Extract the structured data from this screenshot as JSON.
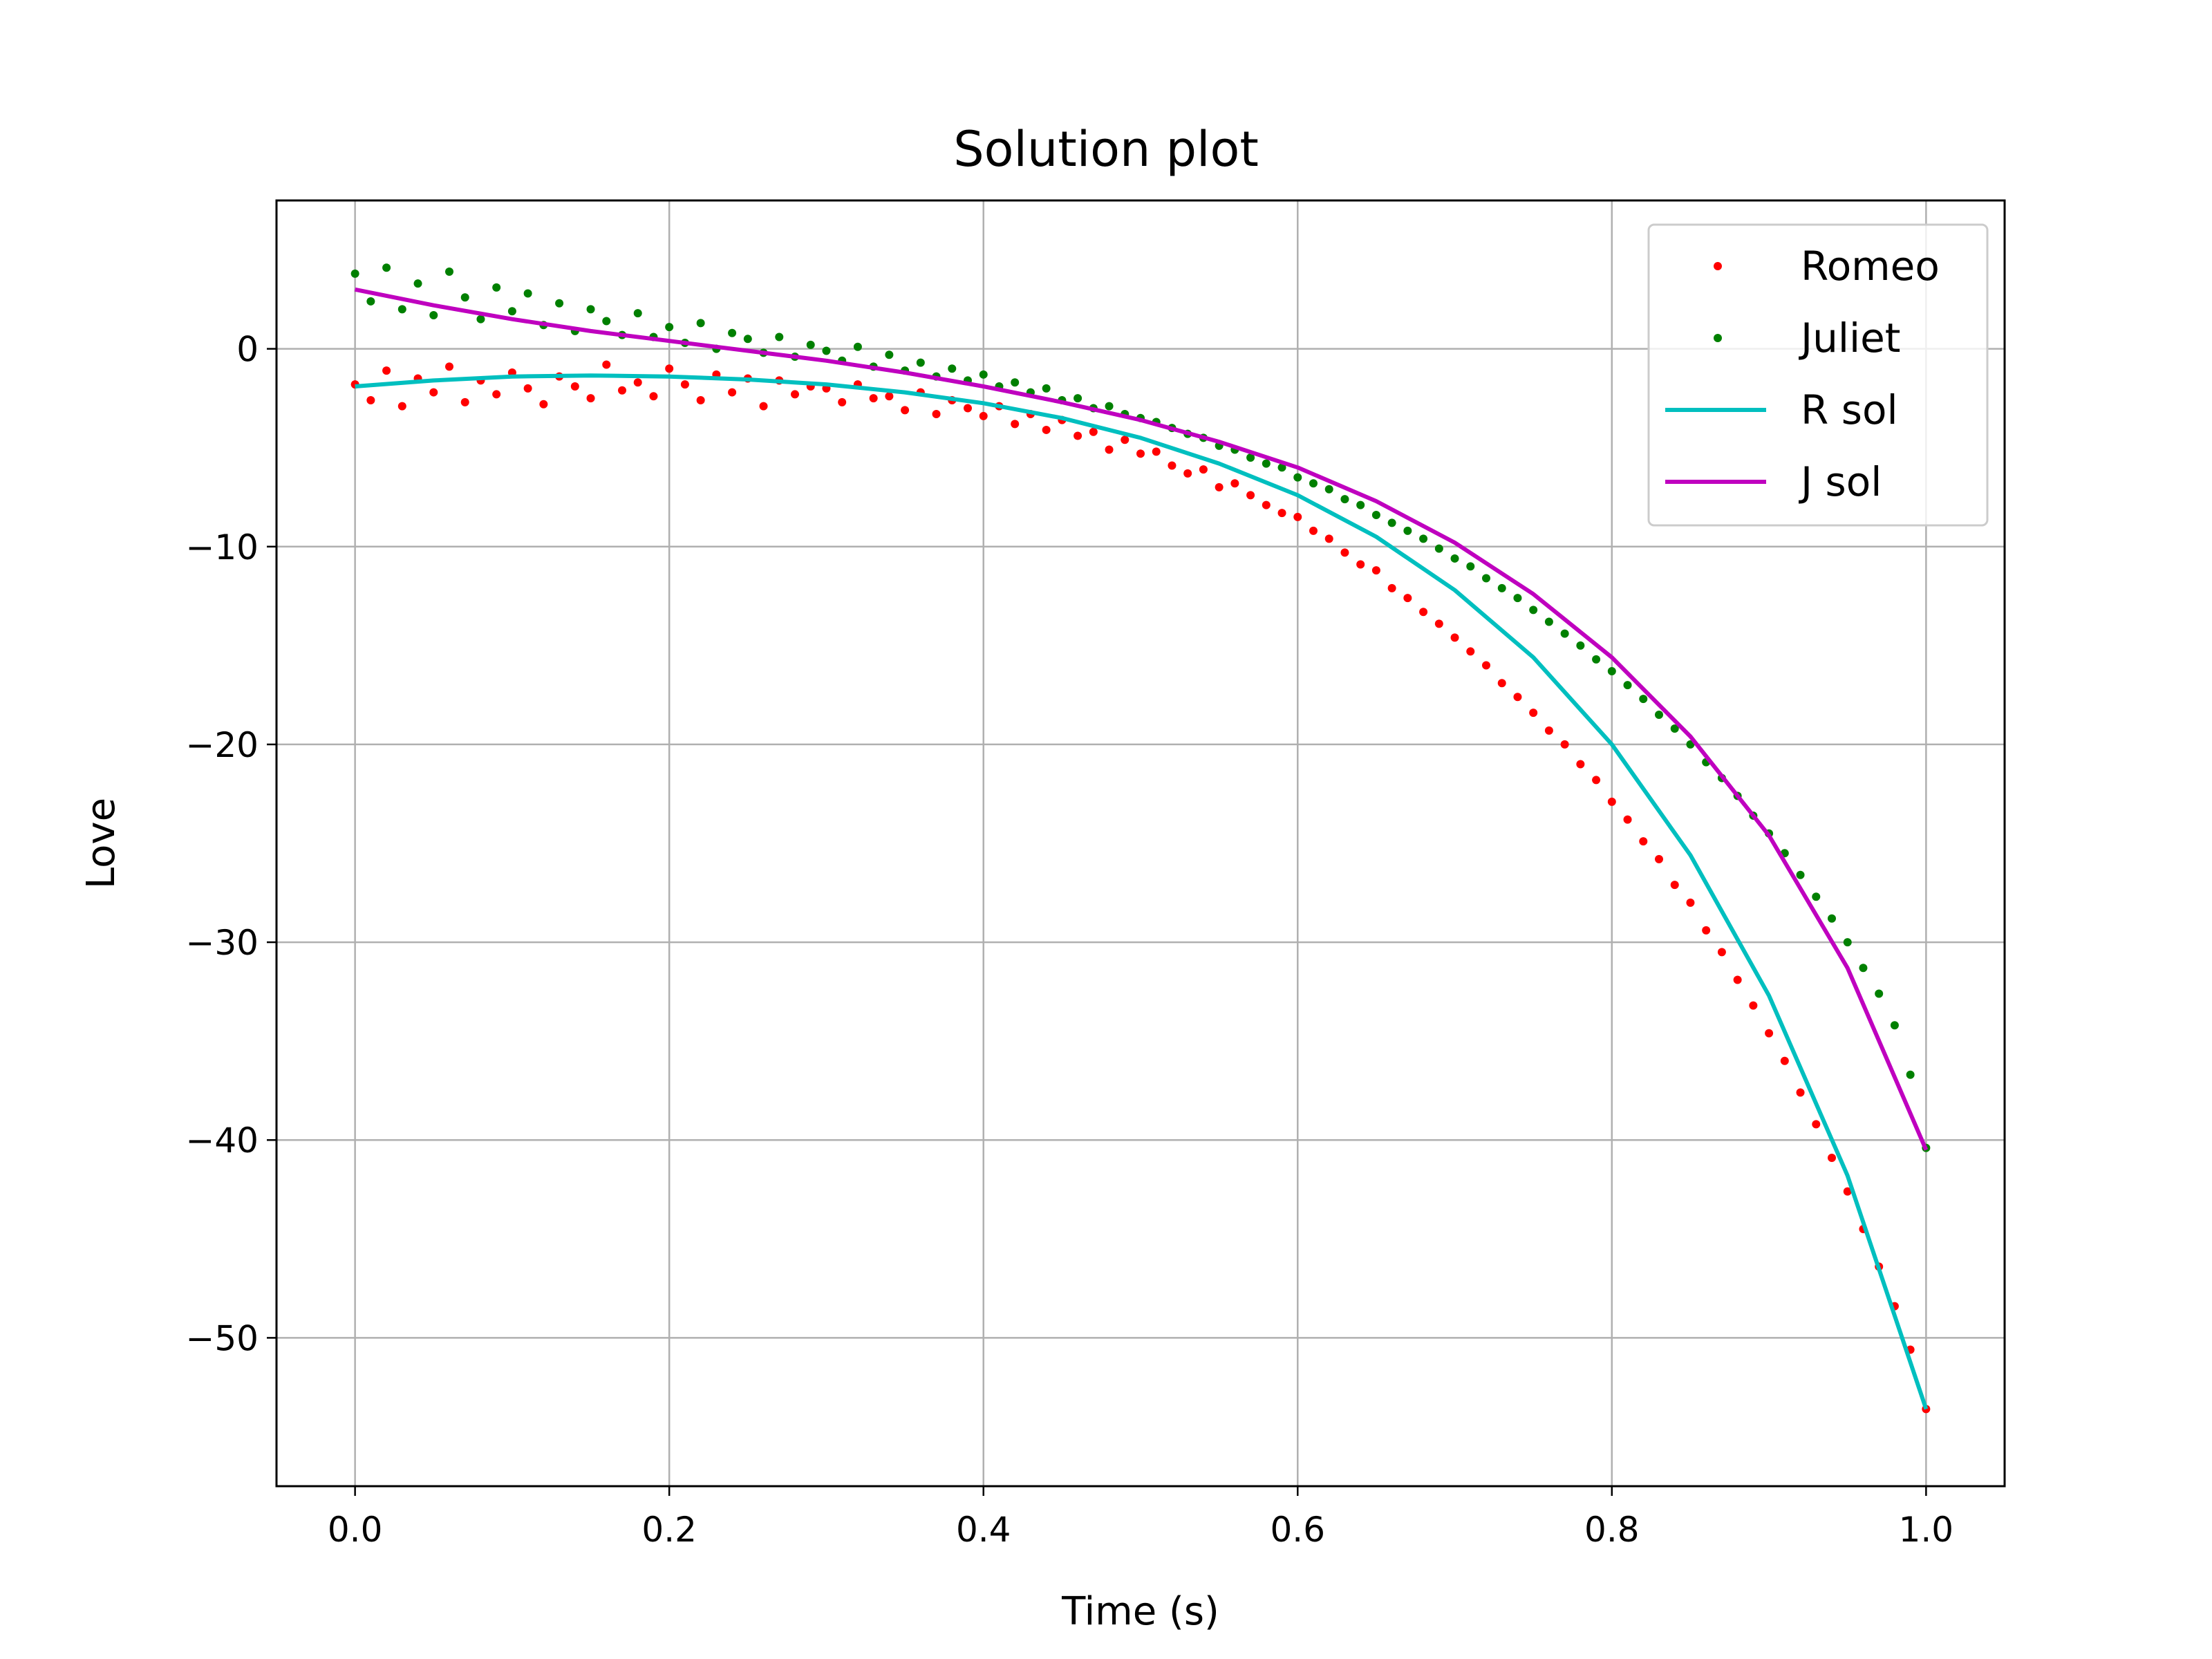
{
  "chart_data": {
    "type": "scatter",
    "title": "Solution plot",
    "xlabel": "Time (s)",
    "ylabel": "Love",
    "xlim": [
      -0.05,
      1.05
    ],
    "ylim": [
      -57.5,
      7.5
    ],
    "xticks": [
      0.0,
      0.2,
      0.4,
      0.6,
      0.8,
      1.0
    ],
    "xtick_labels": [
      "0.0",
      "0.2",
      "0.4",
      "0.6",
      "0.8",
      "1.0"
    ],
    "yticks": [
      0,
      -10,
      -20,
      -30,
      -40,
      -50
    ],
    "ytick_labels": [
      "0",
      "−10",
      "−20",
      "−30",
      "−40",
      "−50"
    ],
    "grid": true,
    "legend_position": "top-right",
    "colors": {
      "Romeo": "#ff0000",
      "Juliet": "#008000",
      "R sol": "#00bfbf",
      "J sol": "#bf00bf"
    },
    "series": [
      {
        "name": "Romeo",
        "kind": "points",
        "x": [
          0.0,
          0.01,
          0.02,
          0.03,
          0.04,
          0.05,
          0.06,
          0.07,
          0.08,
          0.09,
          0.1,
          0.11,
          0.12,
          0.13,
          0.14,
          0.15,
          0.16,
          0.17,
          0.18,
          0.19,
          0.2,
          0.21,
          0.22,
          0.23,
          0.24,
          0.25,
          0.26,
          0.27,
          0.28,
          0.29,
          0.3,
          0.31,
          0.32,
          0.33,
          0.34,
          0.35,
          0.36,
          0.37,
          0.38,
          0.39,
          0.4,
          0.41,
          0.42,
          0.43,
          0.44,
          0.45,
          0.46,
          0.47,
          0.48,
          0.49,
          0.5,
          0.51,
          0.52,
          0.53,
          0.54,
          0.55,
          0.56,
          0.57,
          0.58,
          0.59,
          0.6,
          0.61,
          0.62,
          0.63,
          0.64,
          0.65,
          0.66,
          0.67,
          0.68,
          0.69,
          0.7,
          0.71,
          0.72,
          0.73,
          0.74,
          0.75,
          0.76,
          0.77,
          0.78,
          0.79,
          0.8,
          0.81,
          0.82,
          0.83,
          0.84,
          0.85,
          0.86,
          0.87,
          0.88,
          0.89,
          0.9,
          0.91,
          0.92,
          0.93,
          0.94,
          0.95,
          0.96,
          0.97,
          0.98,
          0.99,
          1.0
        ],
        "y": [
          -1.8,
          -2.6,
          -1.1,
          -2.9,
          -1.5,
          -2.2,
          -0.9,
          -2.7,
          -1.6,
          -2.3,
          -1.2,
          -2.0,
          -2.8,
          -1.4,
          -1.9,
          -2.5,
          -0.8,
          -2.1,
          -1.7,
          -2.4,
          -1.0,
          -1.8,
          -2.6,
          -1.3,
          -2.2,
          -1.5,
          -2.9,
          -1.6,
          -2.3,
          -1.9,
          -2.0,
          -2.7,
          -1.8,
          -2.5,
          -2.4,
          -3.1,
          -2.2,
          -3.3,
          -2.6,
          -3.0,
          -3.4,
          -2.9,
          -3.8,
          -3.3,
          -4.1,
          -3.6,
          -4.4,
          -4.2,
          -5.1,
          -4.6,
          -5.3,
          -5.2,
          -5.9,
          -6.3,
          -6.1,
          -7.0,
          -6.8,
          -7.4,
          -7.9,
          -8.3,
          -8.5,
          -9.2,
          -9.6,
          -10.3,
          -10.9,
          -11.2,
          -12.1,
          -12.6,
          -13.3,
          -13.9,
          -14.6,
          -15.3,
          -16.0,
          -16.9,
          -17.6,
          -18.4,
          -19.3,
          -20.0,
          -21.0,
          -21.8,
          -22.9,
          -23.8,
          -24.9,
          -25.8,
          -27.1,
          -28.0,
          -29.4,
          -30.5,
          -31.9,
          -33.2,
          -34.6,
          -36.0,
          -37.6,
          -39.2,
          -40.9,
          -42.6,
          -44.5,
          -46.4,
          -48.4,
          -50.6,
          -53.6
        ]
      },
      {
        "name": "Juliet",
        "kind": "points",
        "x": [
          0.0,
          0.01,
          0.02,
          0.03,
          0.04,
          0.05,
          0.06,
          0.07,
          0.08,
          0.09,
          0.1,
          0.11,
          0.12,
          0.13,
          0.14,
          0.15,
          0.16,
          0.17,
          0.18,
          0.19,
          0.2,
          0.21,
          0.22,
          0.23,
          0.24,
          0.25,
          0.26,
          0.27,
          0.28,
          0.29,
          0.3,
          0.31,
          0.32,
          0.33,
          0.34,
          0.35,
          0.36,
          0.37,
          0.38,
          0.39,
          0.4,
          0.41,
          0.42,
          0.43,
          0.44,
          0.45,
          0.46,
          0.47,
          0.48,
          0.49,
          0.5,
          0.51,
          0.52,
          0.53,
          0.54,
          0.55,
          0.56,
          0.57,
          0.58,
          0.59,
          0.6,
          0.61,
          0.62,
          0.63,
          0.64,
          0.65,
          0.66,
          0.67,
          0.68,
          0.69,
          0.7,
          0.71,
          0.72,
          0.73,
          0.74,
          0.75,
          0.76,
          0.77,
          0.78,
          0.79,
          0.8,
          0.81,
          0.82,
          0.83,
          0.84,
          0.85,
          0.86,
          0.87,
          0.88,
          0.89,
          0.9,
          0.91,
          0.92,
          0.93,
          0.94,
          0.95,
          0.96,
          0.97,
          0.98,
          0.99,
          1.0
        ],
        "y": [
          3.8,
          2.4,
          4.1,
          2.0,
          3.3,
          1.7,
          3.9,
          2.6,
          1.5,
          3.1,
          1.9,
          2.8,
          1.2,
          2.3,
          0.9,
          2.0,
          1.4,
          0.7,
          1.8,
          0.6,
          1.1,
          0.3,
          1.3,
          0.0,
          0.8,
          0.5,
          -0.2,
          0.6,
          -0.4,
          0.2,
          -0.1,
          -0.6,
          0.1,
          -0.9,
          -0.3,
          -1.1,
          -0.7,
          -1.4,
          -1.0,
          -1.6,
          -1.3,
          -1.9,
          -1.7,
          -2.2,
          -2.0,
          -2.6,
          -2.5,
          -3.0,
          -2.9,
          -3.3,
          -3.5,
          -3.7,
          -4.0,
          -4.3,
          -4.5,
          -4.9,
          -5.1,
          -5.5,
          -5.8,
          -6.0,
          -6.5,
          -6.8,
          -7.1,
          -7.6,
          -7.9,
          -8.4,
          -8.8,
          -9.2,
          -9.6,
          -10.1,
          -10.6,
          -11.0,
          -11.6,
          -12.1,
          -12.6,
          -13.2,
          -13.8,
          -14.4,
          -15.0,
          -15.7,
          -16.3,
          -17.0,
          -17.7,
          -18.5,
          -19.2,
          -20.0,
          -20.9,
          -21.7,
          -22.6,
          -23.6,
          -24.5,
          -25.5,
          -26.6,
          -27.7,
          -28.8,
          -30.0,
          -31.3,
          -32.6,
          -34.2,
          -36.7,
          -40.4
        ]
      },
      {
        "name": "R sol",
        "kind": "line",
        "x": [
          0.0,
          0.05,
          0.1,
          0.15,
          0.2,
          0.25,
          0.3,
          0.35,
          0.4,
          0.45,
          0.5,
          0.55,
          0.6,
          0.65,
          0.7,
          0.75,
          0.8,
          0.85,
          0.9,
          0.95,
          1.0
        ],
        "y": [
          -1.9,
          -1.6,
          -1.4,
          -1.35,
          -1.4,
          -1.55,
          -1.8,
          -2.2,
          -2.75,
          -3.5,
          -4.5,
          -5.8,
          -7.4,
          -9.5,
          -12.2,
          -15.6,
          -20.0,
          -25.6,
          -32.7,
          -41.8,
          -53.6
        ]
      },
      {
        "name": "J sol",
        "kind": "line",
        "x": [
          0.0,
          0.05,
          0.1,
          0.15,
          0.2,
          0.25,
          0.3,
          0.35,
          0.4,
          0.45,
          0.5,
          0.55,
          0.6,
          0.65,
          0.7,
          0.75,
          0.8,
          0.85,
          0.9,
          0.95,
          1.0
        ],
        "y": [
          3.0,
          2.2,
          1.5,
          0.9,
          0.4,
          -0.1,
          -0.6,
          -1.2,
          -1.9,
          -2.7,
          -3.6,
          -4.7,
          -6.0,
          -7.7,
          -9.8,
          -12.4,
          -15.6,
          -19.6,
          -24.6,
          -31.3,
          -40.5
        ]
      }
    ]
  }
}
